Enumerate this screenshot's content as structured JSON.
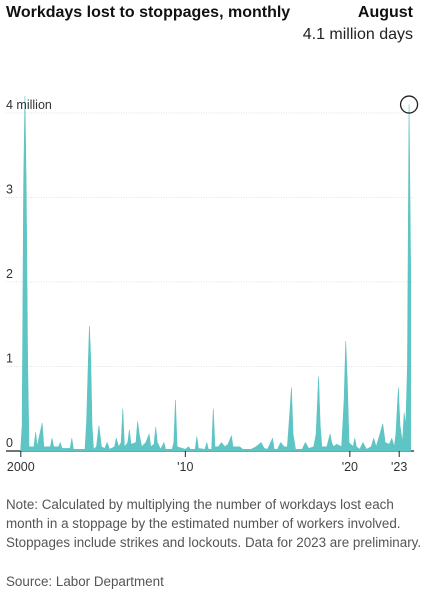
{
  "header": {
    "title": "Workdays lost to stoppages, monthly",
    "callout_title": "August",
    "callout_value": "4.1 million days"
  },
  "footer": {
    "note": "Note: Calculated by multiplying the number of workdays lost each month in a stoppage by the estimated number of workers involved. Stoppages include strikes and lockouts. Data for 2023 are preliminary.",
    "source": "Source: Labor Department"
  },
  "chart_data": {
    "type": "area",
    "title": "Workdays lost to stoppages, monthly",
    "xlabel": "",
    "ylabel": "",
    "units": "million workdays",
    "xlim": [
      1999.1,
      2023.9
    ],
    "ylim": [
      0,
      4.1
    ],
    "x_ticks": [
      {
        "value": 2000,
        "label": "2000"
      },
      {
        "value": 2010,
        "label": "'10"
      },
      {
        "value": 2020,
        "label": "'20"
      },
      {
        "value": 2023,
        "label": "'23"
      }
    ],
    "y_ticks": [
      {
        "value": 0,
        "label": "0"
      },
      {
        "value": 1,
        "label": "1"
      },
      {
        "value": 2,
        "label": "2"
      },
      {
        "value": 3,
        "label": "3"
      },
      {
        "value": 4,
        "label": "4 million"
      }
    ],
    "grid": "horizontal",
    "color": "#5ec4c4",
    "highlight": {
      "x": 2023.6,
      "y": 4.1
    },
    "series": [
      {
        "points": [
          [
            2000.0,
            0.05
          ],
          [
            2000.08,
            0.3
          ],
          [
            2000.17,
            3.15
          ],
          [
            2000.25,
            4.2
          ],
          [
            2000.33,
            3.1
          ],
          [
            2000.42,
            1.0
          ],
          [
            2000.5,
            0.05
          ],
          [
            2000.8,
            0.05
          ],
          [
            2000.9,
            0.22
          ],
          [
            2001.0,
            0.05
          ],
          [
            2001.1,
            0.15
          ],
          [
            2001.3,
            0.33
          ],
          [
            2001.4,
            0.05
          ],
          [
            2001.8,
            0.05
          ],
          [
            2001.9,
            0.15
          ],
          [
            2002.0,
            0.05
          ],
          [
            2002.3,
            0.05
          ],
          [
            2002.4,
            0.1
          ],
          [
            2002.5,
            0.03
          ],
          [
            2003.0,
            0.03
          ],
          [
            2003.1,
            0.15
          ],
          [
            2003.2,
            0.02
          ],
          [
            2003.9,
            0.02
          ],
          [
            2004.0,
            0.35
          ],
          [
            2004.1,
            1.05
          ],
          [
            2004.17,
            1.48
          ],
          [
            2004.25,
            1.1
          ],
          [
            2004.33,
            0.3
          ],
          [
            2004.42,
            0.02
          ],
          [
            2004.6,
            0.05
          ],
          [
            2004.75,
            0.3
          ],
          [
            2004.9,
            0.05
          ],
          [
            2005.1,
            0.03
          ],
          [
            2005.25,
            0.1
          ],
          [
            2005.4,
            0.02
          ],
          [
            2005.7,
            0.05
          ],
          [
            2005.8,
            0.15
          ],
          [
            2005.95,
            0.05
          ],
          [
            2006.1,
            0.1
          ],
          [
            2006.2,
            0.5
          ],
          [
            2006.3,
            0.05
          ],
          [
            2006.5,
            0.1
          ],
          [
            2006.6,
            0.25
          ],
          [
            2006.7,
            0.08
          ],
          [
            2007.0,
            0.1
          ],
          [
            2007.1,
            0.35
          ],
          [
            2007.2,
            0.2
          ],
          [
            2007.35,
            0.05
          ],
          [
            2007.6,
            0.1
          ],
          [
            2007.8,
            0.2
          ],
          [
            2007.9,
            0.05
          ],
          [
            2008.1,
            0.08
          ],
          [
            2008.2,
            0.28
          ],
          [
            2008.3,
            0.1
          ],
          [
            2008.5,
            0.02
          ],
          [
            2008.7,
            0.1
          ],
          [
            2008.8,
            0.02
          ],
          [
            2009.2,
            0.02
          ],
          [
            2009.3,
            0.1
          ],
          [
            2009.4,
            0.6
          ],
          [
            2009.5,
            0.05
          ],
          [
            2010.0,
            0.02
          ],
          [
            2010.2,
            0.05
          ],
          [
            2010.3,
            0.02
          ],
          [
            2010.6,
            0.02
          ],
          [
            2010.7,
            0.17
          ],
          [
            2010.8,
            0.03
          ],
          [
            2011.2,
            0.02
          ],
          [
            2011.3,
            0.1
          ],
          [
            2011.4,
            0.02
          ],
          [
            2011.6,
            0.02
          ],
          [
            2011.7,
            0.5
          ],
          [
            2011.8,
            0.05
          ],
          [
            2012.0,
            0.05
          ],
          [
            2012.2,
            0.1
          ],
          [
            2012.4,
            0.05
          ],
          [
            2012.6,
            0.08
          ],
          [
            2012.8,
            0.18
          ],
          [
            2012.9,
            0.05
          ],
          [
            2013.0,
            0.05
          ],
          [
            2013.3,
            0.05
          ],
          [
            2013.5,
            0.02
          ],
          [
            2013.7,
            0.02
          ],
          [
            2014.0,
            0.02
          ],
          [
            2014.3,
            0.05
          ],
          [
            2014.6,
            0.1
          ],
          [
            2014.8,
            0.03
          ],
          [
            2015.0,
            0.02
          ],
          [
            2015.3,
            0.15
          ],
          [
            2015.4,
            0.02
          ],
          [
            2015.6,
            0.02
          ],
          [
            2015.8,
            0.1
          ],
          [
            2016.0,
            0.05
          ],
          [
            2016.2,
            0.05
          ],
          [
            2016.35,
            0.45
          ],
          [
            2016.45,
            0.75
          ],
          [
            2016.55,
            0.2
          ],
          [
            2016.7,
            0.02
          ],
          [
            2017.1,
            0.02
          ],
          [
            2017.3,
            0.1
          ],
          [
            2017.5,
            0.03
          ],
          [
            2017.8,
            0.05
          ],
          [
            2017.95,
            0.2
          ],
          [
            2018.1,
            0.88
          ],
          [
            2018.2,
            0.3
          ],
          [
            2018.3,
            0.05
          ],
          [
            2018.6,
            0.05
          ],
          [
            2018.8,
            0.2
          ],
          [
            2018.9,
            0.1
          ],
          [
            2019.0,
            0.05
          ],
          [
            2019.2,
            0.08
          ],
          [
            2019.5,
            0.05
          ],
          [
            2019.65,
            0.6
          ],
          [
            2019.75,
            1.3
          ],
          [
            2019.85,
            0.8
          ],
          [
            2019.95,
            0.1
          ],
          [
            2020.2,
            0.05
          ],
          [
            2020.3,
            0.15
          ],
          [
            2020.4,
            0.05
          ],
          [
            2020.6,
            0.02
          ],
          [
            2020.8,
            0.1
          ],
          [
            2021.0,
            0.02
          ],
          [
            2021.3,
            0.05
          ],
          [
            2021.45,
            0.15
          ],
          [
            2021.6,
            0.05
          ],
          [
            2021.8,
            0.18
          ],
          [
            2022.0,
            0.32
          ],
          [
            2022.15,
            0.1
          ],
          [
            2022.4,
            0.08
          ],
          [
            2022.55,
            0.15
          ],
          [
            2022.7,
            0.05
          ],
          [
            2022.8,
            0.2
          ],
          [
            2022.95,
            0.75
          ],
          [
            2023.05,
            0.3
          ],
          [
            2023.2,
            0.1
          ],
          [
            2023.3,
            0.45
          ],
          [
            2023.4,
            0.3
          ],
          [
            2023.5,
            1.0
          ],
          [
            2023.6,
            4.1
          ],
          [
            2023.7,
            2.1
          ]
        ]
      }
    ]
  }
}
